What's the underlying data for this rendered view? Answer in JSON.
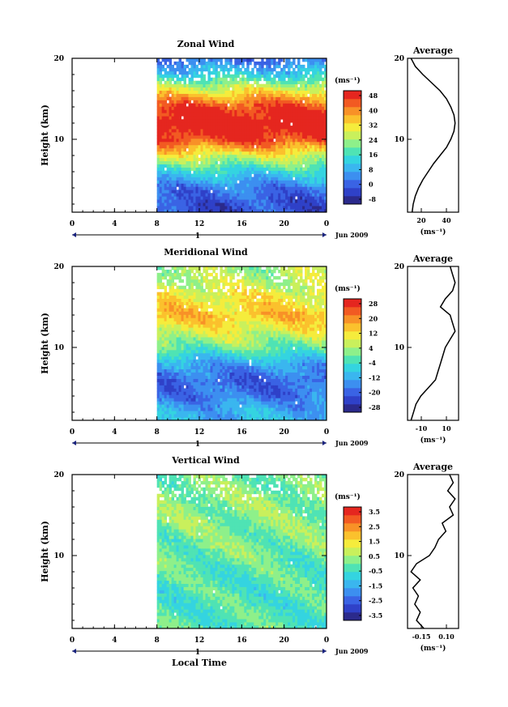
{
  "colormap": [
    "#2b2a8c",
    "#2f41c8",
    "#3a63e4",
    "#3c8ff0",
    "#3ab6ef",
    "#34d4e0",
    "#4fe3b4",
    "#8ef08a",
    "#c9f05c",
    "#f5ec3c",
    "#fbc12d",
    "#f89127",
    "#f25a22",
    "#e5261f"
  ],
  "x_ticks": [
    "0",
    "4",
    "8",
    "12",
    "16",
    "20",
    "0"
  ],
  "date_label": "1",
  "month_label": "Jun 2009",
  "xlabel": "Local Time",
  "panels": [
    {
      "id": "zonal",
      "title": "Zonal Wind",
      "ylabel": "Height (km)",
      "y_ticks": [
        "20",
        "10"
      ],
      "unit": "(ms⁻¹)",
      "colorbar_labels": [
        "48",
        "40",
        "32",
        "24",
        "16",
        "8",
        "0",
        "-8"
      ],
      "avg_title": "Average",
      "avg_x_ticks": [
        "20",
        "40"
      ],
      "avg_y_ticks": [
        "20",
        "10"
      ],
      "avg_unit": "(ms⁻¹)"
    },
    {
      "id": "meridional",
      "title": "Meridional Wind",
      "ylabel": "Height (km)",
      "y_ticks": [
        "20",
        "10"
      ],
      "unit": "(ms⁻¹)",
      "colorbar_labels": [
        "28",
        "20",
        "12",
        "4",
        "-4",
        "-12",
        "-20",
        "-28"
      ],
      "avg_title": "Average",
      "avg_x_ticks": [
        "-10",
        "10"
      ],
      "avg_y_ticks": [
        "20",
        "10"
      ],
      "avg_unit": "(ms⁻¹)"
    },
    {
      "id": "vertical",
      "title": "Vertical Wind",
      "ylabel": "Height (km)",
      "y_ticks": [
        "20",
        "10"
      ],
      "unit": "(ms⁻¹)",
      "colorbar_labels": [
        "3.5",
        "2.5",
        "1.5",
        "0.5",
        "-0.5",
        "-1.5",
        "-2.5",
        "-3.5"
      ],
      "avg_title": "Average",
      "avg_x_ticks": [
        "-0.15",
        "0.10"
      ],
      "avg_y_ticks": [
        "20",
        "10"
      ],
      "avg_unit": "(ms⁻¹)"
    }
  ],
  "chart_data": [
    {
      "type": "heatmap",
      "title": "Zonal Wind",
      "xlabel": "",
      "ylabel": "Height (km)",
      "xlim": [
        0,
        24
      ],
      "ylim": [
        1,
        20
      ],
      "data_start_hour": 8,
      "color_levels": [
        -8,
        0,
        8,
        16,
        24,
        32,
        40,
        48
      ],
      "profile_by_height": {
        "height_km": [
          2,
          4,
          6,
          8,
          10,
          12,
          14,
          16,
          18,
          20
        ],
        "value": [
          0,
          4,
          14,
          28,
          44,
          50,
          44,
          30,
          14,
          2
        ]
      },
      "average_profile": {
        "title": "Average",
        "height_km": [
          1,
          2,
          3,
          4,
          5,
          6,
          7,
          8,
          9,
          10,
          11,
          12,
          13,
          14,
          15,
          16,
          17,
          18,
          19,
          20
        ],
        "value": [
          10,
          11,
          13,
          16,
          20,
          25,
          30,
          36,
          42,
          46,
          49,
          50,
          49,
          46,
          42,
          36,
          28,
          20,
          13,
          9
        ]
      }
    },
    {
      "type": "heatmap",
      "title": "Meridional Wind",
      "xlabel": "",
      "ylabel": "Height (km)",
      "xlim": [
        0,
        24
      ],
      "ylim": [
        1,
        20
      ],
      "data_start_hour": 8,
      "color_levels": [
        -28,
        -20,
        -12,
        -4,
        4,
        12,
        20,
        28
      ],
      "profile_by_height": {
        "height_km": [
          2,
          4,
          6,
          8,
          10,
          12,
          14,
          16,
          18,
          20
        ],
        "value": [
          -10,
          -16,
          -18,
          -12,
          0,
          8,
          14,
          10,
          6,
          4
        ]
      },
      "average_profile": {
        "title": "Average",
        "height_km": [
          1,
          2,
          3,
          4,
          5,
          6,
          7,
          8,
          9,
          10,
          11,
          12,
          13,
          14,
          15,
          16,
          17,
          18,
          19,
          20
        ],
        "value": [
          -10,
          -9,
          -8,
          -6,
          -3,
          0,
          1,
          2,
          3,
          4,
          6,
          8,
          7,
          6,
          2,
          4,
          7,
          8,
          7,
          6
        ]
      }
    },
    {
      "type": "heatmap",
      "title": "Vertical Wind",
      "xlabel": "Local Time",
      "ylabel": "Height (km)",
      "xlim": [
        0,
        24
      ],
      "ylim": [
        1,
        20
      ],
      "data_start_hour": 8,
      "color_levels": [
        -3.5,
        -2.5,
        -1.5,
        -0.5,
        0.5,
        1.5,
        2.5,
        3.5
      ],
      "profile_by_height": {
        "height_km": [
          2,
          4,
          6,
          8,
          10,
          12,
          14,
          16,
          18,
          20
        ],
        "value": [
          -0.2,
          -0.3,
          -0.3,
          -0.2,
          0.0,
          0.1,
          0.2,
          0.3,
          0.2,
          0.1
        ]
      },
      "average_profile": {
        "title": "Average",
        "height_km": [
          1,
          2,
          3,
          4,
          5,
          6,
          7,
          8,
          9,
          10,
          11,
          12,
          13,
          14,
          15,
          16,
          17,
          18,
          19,
          20
        ],
        "value": [
          -0.08,
          -0.12,
          -0.1,
          -0.13,
          -0.11,
          -0.14,
          -0.1,
          -0.15,
          -0.12,
          -0.05,
          -0.02,
          0.0,
          0.04,
          0.02,
          0.08,
          0.06,
          0.09,
          0.05,
          0.08,
          0.06
        ]
      }
    }
  ]
}
